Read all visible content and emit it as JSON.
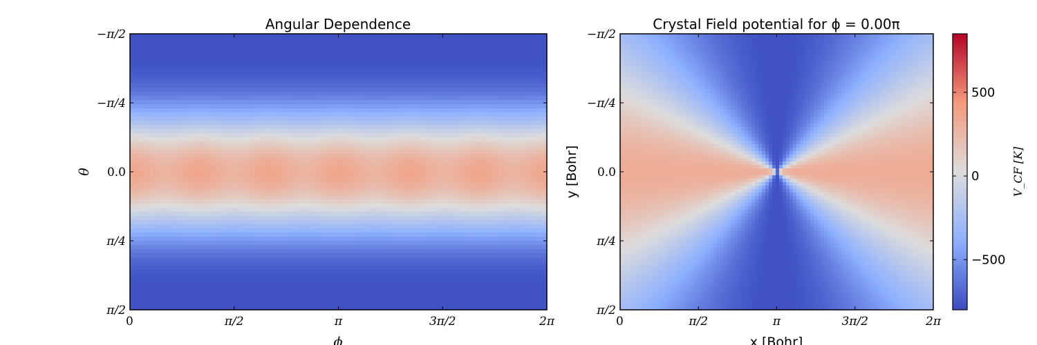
{
  "chart_data": [
    {
      "type": "heatmap",
      "title": "Angular Dependence",
      "xlabel": "ϕ",
      "ylabel": "θ",
      "xticks": [
        "0",
        "π/2",
        "π",
        "3π/2",
        "2π"
      ],
      "yticks": [
        "−π/2",
        "−π/4",
        "0.0",
        "π/4",
        "π/2"
      ],
      "xlim": [
        0,
        6.283
      ],
      "ylim": [
        -1.571,
        1.571
      ],
      "colormap": "coolwarm",
      "vrange": [
        -800,
        850
      ],
      "pattern": "equatorial warm band with 6-fold modulation along ϕ, cold toward both poles"
    },
    {
      "type": "heatmap",
      "title": "Crystal Field potential for ϕ = 0.00π",
      "xlabel": "x [Bohr]",
      "ylabel": "y [Bohr]",
      "xticks": [
        "0",
        "π/2",
        "π",
        "3π/2",
        "2π"
      ],
      "yticks": [
        "−π/2",
        "−π/4",
        "0.0",
        "π/4",
        "π/2"
      ],
      "colormap": "coolwarm",
      "vrange": [
        -800,
        850
      ],
      "pattern": "bow-tie: warm along horizontal directions, cold along vertical directions, meeting at the center",
      "colorbar": {
        "label": "V_CF [K]",
        "ticks": [
          {
            "value": 500,
            "label": "500"
          },
          {
            "value": 0,
            "label": "0"
          },
          {
            "value": -500,
            "label": "−500"
          }
        ],
        "min": -800,
        "max": 850
      }
    }
  ]
}
